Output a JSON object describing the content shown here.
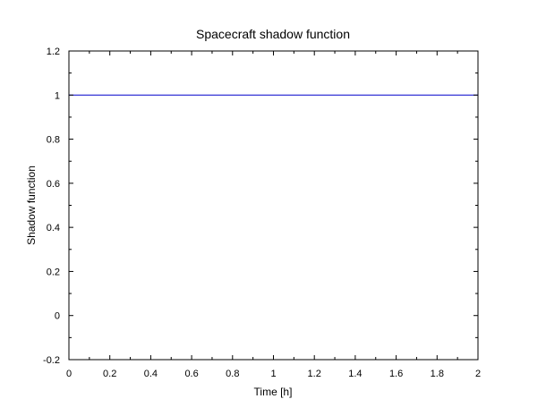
{
  "chart_data": {
    "type": "line",
    "title": "Spacecraft shadow function",
    "xlabel": "Time [h]",
    "ylabel": "Shadow function",
    "xlim": [
      0,
      2
    ],
    "ylim": [
      -0.2,
      1.2
    ],
    "x_ticks": [
      "0",
      "0.2",
      "0.4",
      "0.6",
      "0.8",
      "1",
      "1.2",
      "1.4",
      "1.6",
      "1.8",
      "2"
    ],
    "y_ticks": [
      "-0.2",
      "0",
      "0.2",
      "0.4",
      "0.6",
      "0.8",
      "1",
      "1.2"
    ],
    "grid": false,
    "legend": "none",
    "series": [
      {
        "x": [
          0,
          2
        ],
        "values": [
          1,
          1
        ],
        "color": "#0000cc"
      }
    ]
  }
}
